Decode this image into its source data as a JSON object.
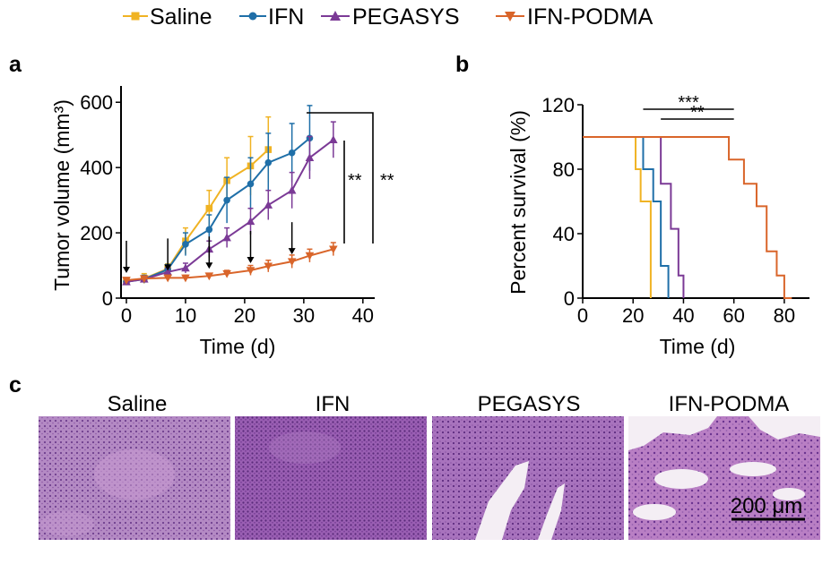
{
  "colors": {
    "Saline": "#f0b323",
    "IFN": "#1f6fa8",
    "PEGASYS": "#7b3a96",
    "IFN-PODMA": "#d9652a",
    "he_pink": "#c98cc4",
    "he_purple": "#8a5aa8",
    "he_bg": "#efe9ef"
  },
  "legend": {
    "items": [
      "Saline",
      "IFN",
      "PEGASYS",
      "IFN-PODMA"
    ]
  },
  "panels": {
    "a": "a",
    "b": "b",
    "c": "c"
  },
  "chart_data": [
    {
      "panel": "a",
      "type": "line",
      "xlabel": "Time (d)",
      "ylabel": "Tumor volume (mm³)",
      "xlim": [
        0,
        42
      ],
      "ylim": [
        0,
        650
      ],
      "xticks": [
        0,
        10,
        20,
        30,
        40
      ],
      "yticks": [
        0,
        200,
        400,
        600
      ],
      "series": [
        {
          "name": "Saline",
          "x": [
            0,
            3,
            7,
            10,
            14,
            17,
            21,
            24
          ],
          "y": [
            50,
            60,
            90,
            175,
            275,
            360,
            405,
            455
          ],
          "err": [
            8,
            15,
            15,
            40,
            55,
            70,
            90,
            100
          ]
        },
        {
          "name": "IFN",
          "x": [
            0,
            3,
            7,
            10,
            14,
            17,
            21,
            24,
            28,
            31
          ],
          "y": [
            50,
            58,
            88,
            165,
            210,
            300,
            350,
            415,
            445,
            490
          ],
          "err": [
            8,
            12,
            15,
            35,
            45,
            70,
            80,
            90,
            90,
            100
          ]
        },
        {
          "name": "PEGASYS",
          "x": [
            0,
            3,
            7,
            10,
            14,
            17,
            21,
            24,
            28,
            31,
            35
          ],
          "y": [
            50,
            58,
            80,
            92,
            150,
            185,
            235,
            285,
            330,
            430,
            485
          ],
          "err": [
            8,
            10,
            12,
            15,
            25,
            30,
            40,
            45,
            55,
            65,
            55
          ]
        },
        {
          "name": "IFN-PODMA",
          "x": [
            0,
            3,
            7,
            10,
            14,
            17,
            21,
            24,
            28,
            31,
            35
          ],
          "y": [
            55,
            60,
            62,
            62,
            68,
            75,
            85,
            98,
            112,
            130,
            150
          ],
          "err": [
            6,
            6,
            8,
            8,
            8,
            10,
            15,
            18,
            20,
            20,
            20
          ]
        }
      ],
      "arrows_x": [
        0,
        7,
        14,
        21,
        28
      ],
      "significance": [
        {
          "label": "**",
          "pair": [
            "PEGASYS",
            "IFN-PODMA"
          ]
        },
        {
          "label": "**",
          "pair": [
            "IFN",
            "IFN-PODMA"
          ]
        }
      ]
    },
    {
      "panel": "b",
      "type": "line",
      "xlabel": "Time (d)",
      "ylabel": "Percent survival (%)",
      "xlim": [
        0,
        90
      ],
      "ylim": [
        0,
        120
      ],
      "xticks": [
        0,
        20,
        40,
        60,
        80
      ],
      "yticks": [
        0,
        40,
        80,
        120
      ],
      "series": [
        {
          "name": "Saline",
          "x": [
            0,
            21,
            21,
            23,
            23,
            27,
            27
          ],
          "y": [
            100,
            100,
            80,
            80,
            60,
            60,
            0
          ]
        },
        {
          "name": "IFN",
          "x": [
            0,
            24,
            24,
            28,
            28,
            31,
            31,
            34,
            34
          ],
          "y": [
            100,
            100,
            80,
            80,
            60,
            60,
            20,
            20,
            0
          ]
        },
        {
          "name": "PEGASYS",
          "x": [
            0,
            31,
            31,
            35,
            35,
            38,
            38,
            40,
            40
          ],
          "y": [
            100,
            100,
            71,
            71,
            43,
            43,
            14,
            14,
            0
          ]
        },
        {
          "name": "IFN-PODMA",
          "x": [
            0,
            58,
            58,
            64,
            64,
            69,
            69,
            73,
            73,
            77,
            77,
            80,
            80,
            83,
            83
          ],
          "y": [
            100,
            100,
            86,
            86,
            71,
            71,
            57,
            57,
            29,
            29,
            14,
            14,
            0,
            0,
            0
          ]
        }
      ],
      "significance": [
        {
          "label": "***",
          "x": [
            24,
            60
          ]
        },
        {
          "label": "**",
          "x": [
            31,
            60
          ]
        }
      ]
    }
  ],
  "histology": {
    "titles": [
      "Saline",
      "IFN",
      "PEGASYS",
      "IFN-PODMA"
    ],
    "scale_bar": "200 μm"
  }
}
